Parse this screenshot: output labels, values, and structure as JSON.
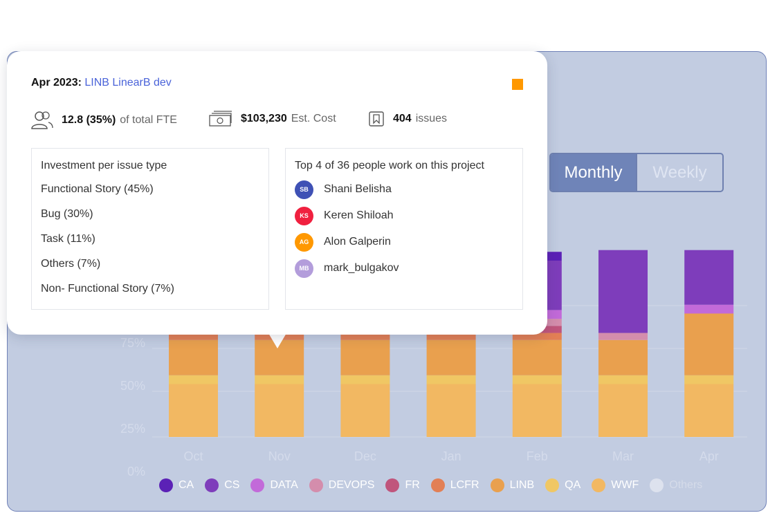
{
  "toggle": {
    "options": [
      "Monthly",
      "Weekly"
    ],
    "active": "Monthly"
  },
  "tooltip": {
    "date": "Apr 2023:",
    "project": "LINB LinearB dev",
    "marker_color": "#ff9800",
    "fte_value": "12.8 (35%)",
    "fte_suffix": "of total FTE",
    "cost_value": "$103,230",
    "cost_suffix": "Est. Cost",
    "issues_value": "404",
    "issues_suffix": "issues",
    "investment": {
      "header": "Investment per issue type",
      "rows": [
        "Functional Story (45%)",
        "Bug (30%)",
        "Task (11%)",
        "Others (7%)",
        "Non- Functional Story (7%)"
      ]
    },
    "people": {
      "header": "Top 4 of 36 people work on this project",
      "list": [
        {
          "initials": "SB",
          "name": "Shani Belisha",
          "color": "#3f51b5"
        },
        {
          "initials": "KS",
          "name": "Keren Shiloah",
          "color": "#f0203f"
        },
        {
          "initials": "AG",
          "name": "Alon Galperin",
          "color": "#ff9800"
        },
        {
          "initials": "MB",
          "name": "mark_bulgakov",
          "color": "#b39ddb"
        }
      ]
    }
  },
  "legend": [
    {
      "label": "CA",
      "color": "#5b21b6"
    },
    {
      "label": "CS",
      "color": "#7e3dbb"
    },
    {
      "label": "DATA",
      "color": "#c26ad9"
    },
    {
      "label": "DEVOPS",
      "color": "#d48dac"
    },
    {
      "label": "FR",
      "color": "#c0557c"
    },
    {
      "label": "LCFR",
      "color": "#e27f55"
    },
    {
      "label": "LINB",
      "color": "#e9a04e"
    },
    {
      "label": "QA",
      "color": "#f0c764"
    },
    {
      "label": "WWF",
      "color": "#f2b862"
    },
    {
      "label": "Others",
      "color": "#dde2ee"
    }
  ],
  "chart_data": {
    "type": "bar",
    "stacked": true,
    "categories": [
      "Oct",
      "Nov",
      "Dec",
      "Jan",
      "Feb",
      "Mar",
      "Apr"
    ],
    "y_ticks": [
      "0%",
      "25%",
      "50%",
      "75%"
    ],
    "ylim": [
      0,
      100
    ],
    "series": [
      {
        "name": "WWF",
        "values": [
          30,
          30,
          30,
          30,
          30,
          30,
          30
        ]
      },
      {
        "name": "QA",
        "values": [
          5,
          5,
          5,
          5,
          5,
          5,
          5
        ]
      },
      {
        "name": "LINB",
        "values": [
          20,
          20,
          20,
          20,
          20,
          20,
          35
        ]
      },
      {
        "name": "LCFR",
        "values": [
          4,
          4,
          4,
          4,
          4,
          0,
          0
        ]
      },
      {
        "name": "FR",
        "values": [
          5,
          5,
          5,
          5,
          4,
          0,
          0
        ]
      },
      {
        "name": "DEVOPS",
        "values": [
          0,
          0,
          0,
          0,
          4,
          4,
          0
        ]
      },
      {
        "name": "DATA",
        "values": [
          0,
          0,
          0,
          0,
          5,
          0,
          5
        ]
      },
      {
        "name": "CS",
        "values": [
          0,
          0,
          0,
          0,
          28,
          47,
          31
        ]
      },
      {
        "name": "CA",
        "values": [
          0,
          0,
          0,
          0,
          5,
          0,
          0
        ]
      }
    ]
  }
}
